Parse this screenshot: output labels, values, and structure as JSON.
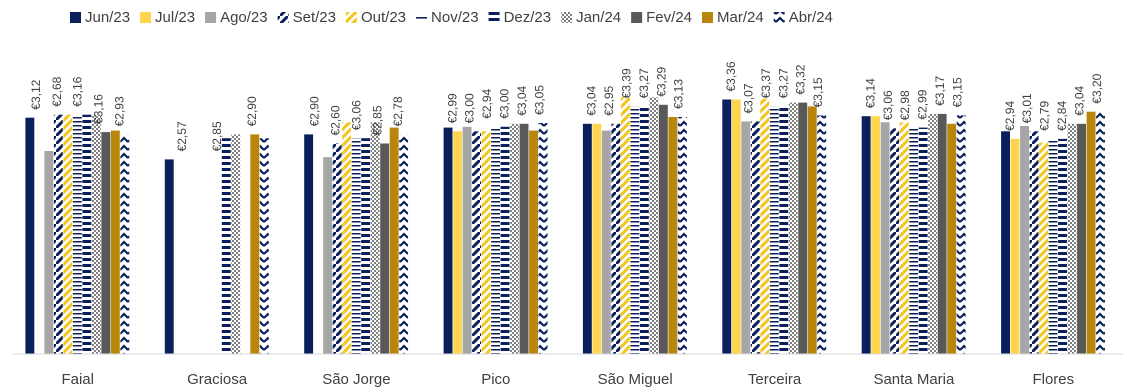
{
  "chart_data": {
    "type": "bar",
    "categories": [
      "Faial",
      "Graciosa",
      "São Jorge",
      "Pico",
      "São Miguel",
      "Terceira",
      "Santa Maria",
      "Flores"
    ],
    "series": [
      {
        "name": "Jun/23",
        "color": "#0a1f5c",
        "pattern": "solid",
        "values": [
          3.12,
          2.57,
          2.9,
          2.99,
          3.04,
          3.36,
          3.14,
          2.94
        ]
      },
      {
        "name": "Jul/23",
        "color": "#ffd54f",
        "pattern": "solid",
        "values": [
          null,
          null,
          null,
          2.94,
          3.04,
          3.36,
          3.14,
          2.84
        ]
      },
      {
        "name": "Ago/23",
        "color": "#a6a6a6",
        "pattern": "solid",
        "values": [
          2.68,
          null,
          2.6,
          3.0,
          2.95,
          3.07,
          3.06,
          3.01
        ]
      },
      {
        "name": "Set/23",
        "color": "#0a1f5c",
        "pattern": "dash-diag",
        "values": [
          3.16,
          null,
          2.78,
          2.94,
          3.04,
          3.07,
          2.98,
          2.94
        ]
      },
      {
        "name": "Out/23",
        "color": "#f5c518",
        "pattern": "diag-stripe",
        "values": [
          3.16,
          null,
          3.06,
          2.94,
          3.39,
          3.37,
          3.06,
          2.79
        ]
      },
      {
        "name": "Nov/23",
        "color": "#0a1f5c",
        "pattern": "hline",
        "values": [
          3.16,
          null,
          2.85,
          3.0,
          3.27,
          3.27,
          2.98,
          2.84
        ]
      },
      {
        "name": "Dez/23",
        "color": "#0a1f5c",
        "pattern": "hstripe",
        "values": [
          3.16,
          2.85,
          2.85,
          3.0,
          3.27,
          3.27,
          2.99,
          2.84
        ]
      },
      {
        "name": "Jan/24",
        "color": "#808080",
        "pattern": "checker",
        "values": [
          3.16,
          2.9,
          3.06,
          3.04,
          3.39,
          3.32,
          3.17,
          3.04
        ]
      },
      {
        "name": "Fev/24",
        "color": "#595959",
        "pattern": "solid",
        "values": [
          2.93,
          null,
          2.78,
          3.04,
          3.29,
          3.32,
          3.17,
          3.04
        ]
      },
      {
        "name": "Mar/24",
        "color": "#b8860b",
        "pattern": "solid",
        "values": [
          2.95,
          2.9,
          2.99,
          2.95,
          3.13,
          3.27,
          3.04,
          3.2
        ]
      },
      {
        "name": "Abr/24",
        "color": "#0a1f5c",
        "pattern": "zigzag",
        "values": [
          2.9,
          2.85,
          2.9,
          3.05,
          3.13,
          3.15,
          3.15,
          3.2
        ]
      }
    ],
    "data_labels": [
      [
        "€3,12",
        "€2,68",
        "€3,16",
        "€3,16",
        "€2,93"
      ],
      [
        "€2,57",
        "€2,85",
        "€2,90"
      ],
      [
        "€2,90",
        "€2,60",
        "€3,06",
        "€2,85",
        "€2,78"
      ],
      [
        "€2,99",
        "€3,00",
        "€2,94",
        "€3,00",
        "€3,04",
        "€3,05"
      ],
      [
        "€3,04",
        "€2,95",
        "€3,39",
        "€3,27",
        "€3,29",
        "€3,13"
      ],
      [
        "€3,36",
        "€3,07",
        "€3,37",
        "€3,27",
        "€3,32",
        "€3,15"
      ],
      [
        "€3,14",
        "€3,06",
        "€2,98",
        "€2,99",
        "€3,17",
        "€3,15"
      ],
      [
        "€2,94",
        "€3,01",
        "€2,79",
        "€2,84",
        "€3,04",
        "€3,20"
      ]
    ],
    "ylim": [
      0,
      3.6
    ],
    "grid": false,
    "legend_position": "top",
    "title": "",
    "xlabel": "",
    "ylabel": ""
  }
}
